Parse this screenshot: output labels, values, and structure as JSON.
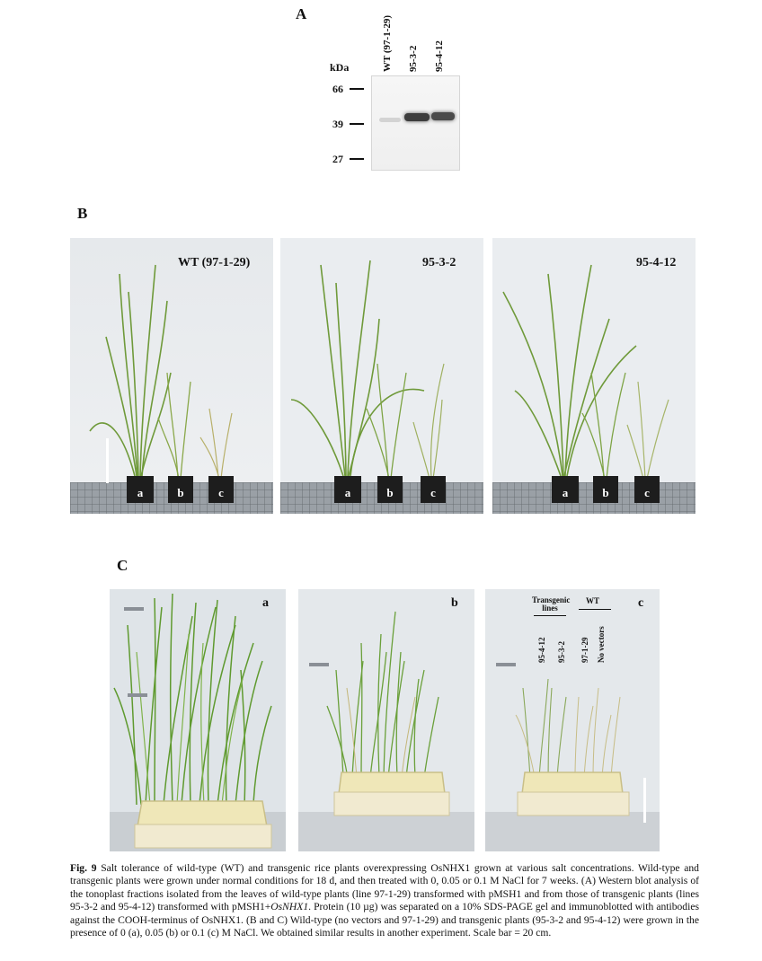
{
  "panel_A": {
    "letter": "A",
    "kda_label": "kDa",
    "markers": [
      "66",
      "39",
      "27"
    ],
    "lanes": [
      "WT (97-1-29)",
      "95-3-2",
      "95-4-12"
    ]
  },
  "panel_B": {
    "letter": "B",
    "photos": [
      {
        "title": "WT (97-1-29)",
        "pots": [
          "a",
          "b",
          "c"
        ]
      },
      {
        "title": "95-3-2",
        "pots": [
          "a",
          "b",
          "c"
        ]
      },
      {
        "title": "95-4-12",
        "pots": [
          "a",
          "b",
          "c"
        ]
      }
    ]
  },
  "panel_C": {
    "letter": "C",
    "photos": [
      {
        "label": "a"
      },
      {
        "label": "b"
      },
      {
        "label": "c"
      }
    ],
    "legend": {
      "group1": "Transgenic lines",
      "group2": "WT",
      "columns": [
        "95-4-12",
        "95-3-2",
        "97-1-29",
        "No vectors"
      ]
    }
  },
  "caption": {
    "figure_label": "Fig. 9",
    "seg1": "  Salt tolerance of wild-type (WT) and transgenic rice plants overexpressing OsNHX1 grown at various salt concentrations. Wild-type and transgenic plants were grown under normal conditions for 18 d, and then treated with 0, 0.05 or 0.1 M NaCl for 7 weeks. (A) Western blot analysis of the tonoplast fractions isolated from the leaves of wild-type plants (line 97-1-29) transformed with pMSH1 and from those of transgenic plants (lines 95-3-2 and 95-4-12) transformed with pMSH1+",
    "seg1_italic": "OsNHX1",
    "seg2": ". Protein (10 µg) was separated on a 10% SDS-PAGE gel and immunoblotted with antibodies against the COOH-terminus of OsNHX1. (B and C) Wild-type (no vectors and 97-1-29) and transgenic plants (95-3-2 and 95-4-12) were grown in the presence of 0 (a), 0.05 (b) or 0.1 (c) M NaCl. We obtained similar results in another experiment. Scale bar = 20 cm."
  }
}
